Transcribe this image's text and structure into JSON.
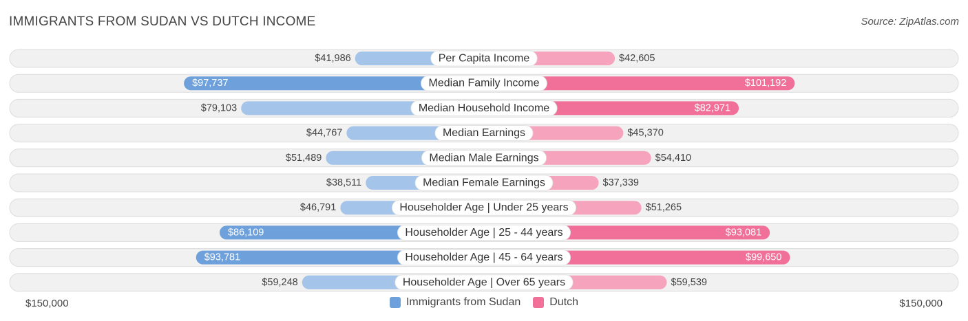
{
  "header": {
    "title": "Immigrants from Sudan vs Dutch Income",
    "source": "Source: ZipAtlas.com"
  },
  "colors": {
    "left_strong": "#6ea1dc",
    "left_light": "#a4c4e9",
    "right_strong": "#f07099",
    "right_light": "#f6a3bd",
    "track": "#f1f1f1",
    "track_border": "#dcdcdc"
  },
  "chart_data": {
    "type": "bar",
    "orientation": "horizontal-diverging",
    "title": "Immigrants from Sudan vs Dutch Income",
    "categories": [
      "Per Capita Income",
      "Median Family Income",
      "Median Household Income",
      "Median Earnings",
      "Median Male Earnings",
      "Median Female Earnings",
      "Householder Age | Under 25 years",
      "Householder Age | 25 - 44 years",
      "Householder Age | 45 - 64 years",
      "Householder Age | Over 65 years"
    ],
    "series": [
      {
        "name": "Immigrants from Sudan",
        "values": [
          41986,
          97737,
          79103,
          44767,
          51489,
          38511,
          46791,
          86109,
          93781,
          59248
        ],
        "labels": [
          "$41,986",
          "$97,737",
          "$79,103",
          "$44,767",
          "$51,489",
          "$38,511",
          "$46,791",
          "$86,109",
          "$93,781",
          "$59,248"
        ]
      },
      {
        "name": "Dutch",
        "values": [
          42605,
          101192,
          82971,
          45370,
          54410,
          37339,
          51265,
          93081,
          99650,
          59539
        ],
        "labels": [
          "$42,605",
          "$101,192",
          "$82,971",
          "$45,370",
          "$54,410",
          "$37,339",
          "$51,265",
          "$93,081",
          "$99,650",
          "$59,539"
        ]
      }
    ],
    "xlim": [
      -150000,
      150000
    ],
    "axis_labels": {
      "left": "$150,000",
      "right": "$150,000"
    },
    "legend_position": "bottom-center"
  }
}
